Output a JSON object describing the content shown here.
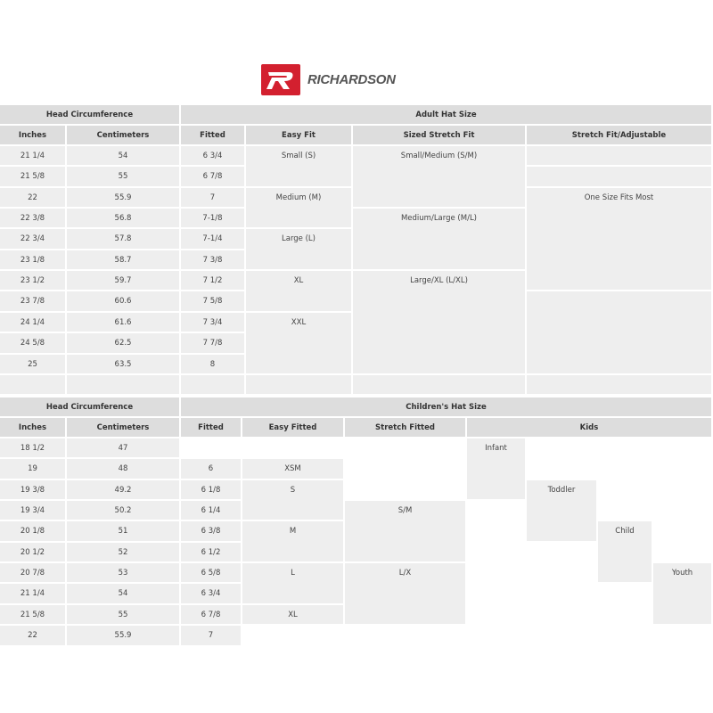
{
  "brand": {
    "name": "RICHARDSON",
    "color": "#d3202f"
  },
  "adult": {
    "group_left": "Head Circumference",
    "group_right": "Adult Hat Size",
    "columns": [
      "Inches",
      "Centimeters",
      "Fitted",
      "Easy Fit",
      "Sized Stretch Fit",
      "Stretch Fit/Adjustable"
    ],
    "inches": [
      "21 1/4",
      "21 5/8",
      "22",
      "22 3/8",
      "22 3/4",
      "23 1/8",
      "23 1/2",
      "23 7/8",
      "24 1/4",
      "24 5/8",
      "25"
    ],
    "centimeters": [
      "54",
      "55",
      "55.9",
      "56.8",
      "57.8",
      "58.7",
      "59.7",
      "60.6",
      "61.6",
      "62.5",
      "63.5"
    ],
    "fitted": [
      "6 3/4",
      "6 7/8",
      "7",
      "7-1/8",
      "7-1/4",
      "7 3/8",
      "7 1/2",
      "7 5/8",
      "7 3/4",
      "7 7/8",
      "8"
    ],
    "easy_fit": [
      "Small (S)",
      "Medium (M)",
      "Large (L)",
      "XL",
      "XXL"
    ],
    "sized_stretch_fit": [
      "Small/Medium (S/M)",
      "Medium/Large (M/L)",
      "Large/XL (L/XL)"
    ],
    "stretch_fit_adjustable": [
      "One Size Fits Most"
    ]
  },
  "children": {
    "group_left": "Head Circumference",
    "group_right": "Children's Hat Size",
    "columns": [
      "Inches",
      "Centimeters",
      "Fitted",
      "Easy Fitted",
      "Stretch Fitted",
      "Kids"
    ],
    "inches": [
      "18 1/2",
      "19",
      "19 3/8",
      "19 3/4",
      "20 1/8",
      "20 1/2",
      "20 7/8",
      "21 1/4",
      "21 5/8",
      "22"
    ],
    "centimeters": [
      "47",
      "48",
      "49.2",
      "50.2",
      "51",
      "52",
      "53",
      "54",
      "55",
      "55.9"
    ],
    "fitted": [
      "6",
      "6 1/8",
      "6 1/4",
      "6 3/8",
      "6 1/2",
      "6 5/8",
      "6 3/4",
      "6 7/8",
      "7"
    ],
    "easy_fitted": [
      "XSM",
      "S",
      "M",
      "L",
      "XL"
    ],
    "stretch_fitted": [
      "S/M",
      "L/X"
    ],
    "kids": [
      "Infant",
      "Toddler",
      "Child",
      "Youth"
    ]
  }
}
